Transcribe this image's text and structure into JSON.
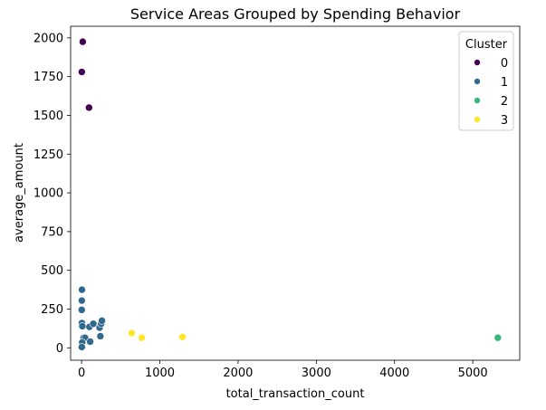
{
  "chart_data": {
    "type": "scatter",
    "title": "Service Areas Grouped by Spending Behavior",
    "xlabel": "total_transaction_count",
    "ylabel": "average_amount",
    "xlim": [
      -140,
      5600
    ],
    "ylim": [
      -80,
      2075
    ],
    "xticks": [
      0,
      1000,
      2000,
      3000,
      4000,
      5000
    ],
    "yticks": [
      0,
      250,
      500,
      750,
      1000,
      1250,
      1500,
      1750,
      2000
    ],
    "legend": {
      "title": "Cluster",
      "placement": "top-right"
    },
    "series": [
      {
        "name": "0",
        "color": "#440154",
        "points": [
          [
            15,
            1975
          ],
          [
            3,
            1780
          ],
          [
            95,
            1550
          ]
        ]
      },
      {
        "name": "1",
        "color": "#31688e",
        "points": [
          [
            5,
            375
          ],
          [
            3,
            305
          ],
          [
            2,
            245
          ],
          [
            4,
            160
          ],
          [
            10,
            140
          ],
          [
            25,
            65
          ],
          [
            45,
            65
          ],
          [
            8,
            35
          ],
          [
            3,
            5
          ],
          [
            100,
            135
          ],
          [
            150,
            155
          ],
          [
            230,
            130
          ],
          [
            250,
            155
          ],
          [
            260,
            175
          ],
          [
            240,
            75
          ],
          [
            110,
            40
          ]
        ]
      },
      {
        "name": "2",
        "color": "#35b779",
        "points": [
          [
            5320,
            65
          ]
        ]
      },
      {
        "name": "3",
        "color": "#fde725",
        "points": [
          [
            640,
            95
          ],
          [
            770,
            65
          ],
          [
            1290,
            70
          ]
        ]
      }
    ]
  }
}
